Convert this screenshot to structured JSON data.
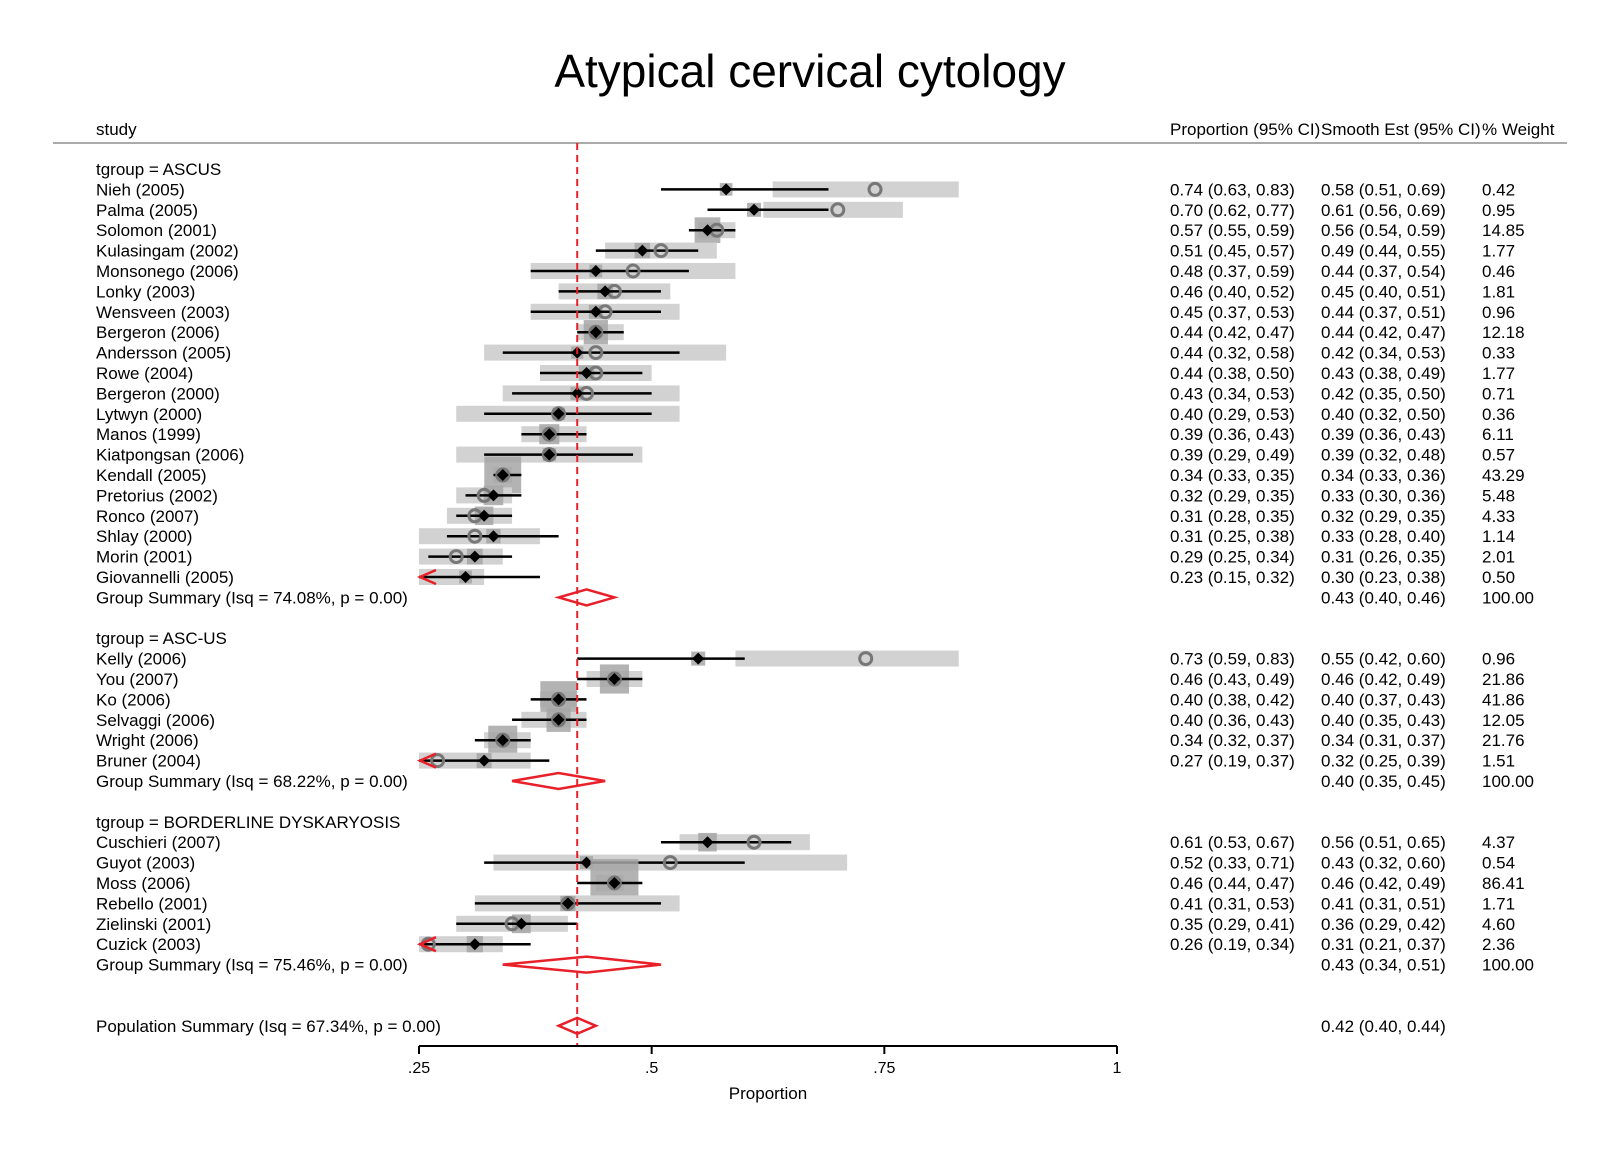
{
  "chart_data": {
    "type": "forest",
    "title": "Atypical cervical cytology",
    "xlabel": "Proportion",
    "xlim": [
      0.25,
      1
    ],
    "ticks": [
      {
        "value": 0.25,
        "label": ".25"
      },
      {
        "value": 0.5,
        "label": ".5"
      },
      {
        "value": 0.75,
        "label": ".75"
      },
      {
        "value": 1,
        "label": "1"
      }
    ],
    "reference_line": 0.42,
    "headers": {
      "study": "study",
      "proportion": "Proportion (95% CI)",
      "smooth": "Smooth Est (95% CI)",
      "weight": "% Weight"
    },
    "groups": [
      {
        "label": "tgroup = ASCUS",
        "studies": [
          {
            "name": "Nieh (2005)",
            "prop": 0.74,
            "prop_lo": 0.63,
            "prop_hi": 0.83,
            "est": 0.58,
            "est_lo": 0.51,
            "est_hi": 0.69,
            "prop_text": "0.74 (0.63, 0.83)",
            "est_text": "0.58 (0.51, 0.69)",
            "weight": "0.42"
          },
          {
            "name": "Palma (2005)",
            "prop": 0.7,
            "prop_lo": 0.62,
            "prop_hi": 0.77,
            "est": 0.61,
            "est_lo": 0.56,
            "est_hi": 0.69,
            "prop_text": "0.70 (0.62, 0.77)",
            "est_text": "0.61 (0.56, 0.69)",
            "weight": "0.95"
          },
          {
            "name": "Solomon (2001)",
            "prop": 0.57,
            "prop_lo": 0.55,
            "prop_hi": 0.59,
            "est": 0.56,
            "est_lo": 0.54,
            "est_hi": 0.59,
            "prop_text": "0.57 (0.55, 0.59)",
            "est_text": "0.56 (0.54, 0.59)",
            "weight": "14.85"
          },
          {
            "name": "Kulasingam (2002)",
            "prop": 0.51,
            "prop_lo": 0.45,
            "prop_hi": 0.57,
            "est": 0.49,
            "est_lo": 0.44,
            "est_hi": 0.55,
            "prop_text": "0.51 (0.45, 0.57)",
            "est_text": "0.49 (0.44, 0.55)",
            "weight": "1.77"
          },
          {
            "name": "Monsonego (2006)",
            "prop": 0.48,
            "prop_lo": 0.37,
            "prop_hi": 0.59,
            "est": 0.44,
            "est_lo": 0.37,
            "est_hi": 0.54,
            "prop_text": "0.48 (0.37, 0.59)",
            "est_text": "0.44 (0.37, 0.54)",
            "weight": "0.46"
          },
          {
            "name": "Lonky (2003)",
            "prop": 0.46,
            "prop_lo": 0.4,
            "prop_hi": 0.52,
            "est": 0.45,
            "est_lo": 0.4,
            "est_hi": 0.51,
            "prop_text": "0.46 (0.40, 0.52)",
            "est_text": "0.45 (0.40, 0.51)",
            "weight": "1.81"
          },
          {
            "name": "Wensveen (2003)",
            "prop": 0.45,
            "prop_lo": 0.37,
            "prop_hi": 0.53,
            "est": 0.44,
            "est_lo": 0.37,
            "est_hi": 0.51,
            "prop_text": "0.45 (0.37, 0.53)",
            "est_text": "0.44 (0.37, 0.51)",
            "weight": "0.96"
          },
          {
            "name": "Bergeron (2006)",
            "prop": 0.44,
            "prop_lo": 0.42,
            "prop_hi": 0.47,
            "est": 0.44,
            "est_lo": 0.42,
            "est_hi": 0.47,
            "prop_text": "0.44 (0.42, 0.47)",
            "est_text": "0.44 (0.42, 0.47)",
            "weight": "12.18"
          },
          {
            "name": "Andersson (2005)",
            "prop": 0.44,
            "prop_lo": 0.32,
            "prop_hi": 0.58,
            "est": 0.42,
            "est_lo": 0.34,
            "est_hi": 0.53,
            "prop_text": "0.44 (0.32, 0.58)",
            "est_text": "0.42 (0.34, 0.53)",
            "weight": "0.33"
          },
          {
            "name": "Rowe (2004)",
            "prop": 0.44,
            "prop_lo": 0.38,
            "prop_hi": 0.5,
            "est": 0.43,
            "est_lo": 0.38,
            "est_hi": 0.49,
            "prop_text": "0.44 (0.38, 0.50)",
            "est_text": "0.43 (0.38, 0.49)",
            "weight": "1.77"
          },
          {
            "name": "Bergeron (2000)",
            "prop": 0.43,
            "prop_lo": 0.34,
            "prop_hi": 0.53,
            "est": 0.42,
            "est_lo": 0.35,
            "est_hi": 0.5,
            "prop_text": "0.43 (0.34, 0.53)",
            "est_text": "0.42 (0.35, 0.50)",
            "weight": "0.71"
          },
          {
            "name": "Lytwyn (2000)",
            "prop": 0.4,
            "prop_lo": 0.29,
            "prop_hi": 0.53,
            "est": 0.4,
            "est_lo": 0.32,
            "est_hi": 0.5,
            "prop_text": "0.40 (0.29, 0.53)",
            "est_text": "0.40 (0.32, 0.50)",
            "weight": "0.36"
          },
          {
            "name": "Manos (1999)",
            "prop": 0.39,
            "prop_lo": 0.36,
            "prop_hi": 0.43,
            "est": 0.39,
            "est_lo": 0.36,
            "est_hi": 0.43,
            "prop_text": "0.39 (0.36, 0.43)",
            "est_text": "0.39 (0.36, 0.43)",
            "weight": "6.11"
          },
          {
            "name": "Kiatpongsan (2006)",
            "prop": 0.39,
            "prop_lo": 0.29,
            "prop_hi": 0.49,
            "est": 0.39,
            "est_lo": 0.32,
            "est_hi": 0.48,
            "prop_text": "0.39 (0.29, 0.49)",
            "est_text": "0.39 (0.32, 0.48)",
            "weight": "0.57"
          },
          {
            "name": "Kendall (2005)",
            "prop": 0.34,
            "prop_lo": 0.33,
            "prop_hi": 0.35,
            "est": 0.34,
            "est_lo": 0.33,
            "est_hi": 0.36,
            "prop_text": "0.34 (0.33, 0.35)",
            "est_text": "0.34 (0.33, 0.36)",
            "weight": "43.29"
          },
          {
            "name": "Pretorius (2002)",
            "prop": 0.32,
            "prop_lo": 0.29,
            "prop_hi": 0.35,
            "est": 0.33,
            "est_lo": 0.3,
            "est_hi": 0.36,
            "prop_text": "0.32 (0.29, 0.35)",
            "est_text": "0.33 (0.30, 0.36)",
            "weight": "5.48"
          },
          {
            "name": "Ronco (2007)",
            "prop": 0.31,
            "prop_lo": 0.28,
            "prop_hi": 0.35,
            "est": 0.32,
            "est_lo": 0.29,
            "est_hi": 0.35,
            "prop_text": "0.31 (0.28, 0.35)",
            "est_text": "0.32 (0.29, 0.35)",
            "weight": "4.33"
          },
          {
            "name": "Shlay (2000)",
            "prop": 0.31,
            "prop_lo": 0.25,
            "prop_hi": 0.38,
            "est": 0.33,
            "est_lo": 0.28,
            "est_hi": 0.4,
            "prop_text": "0.31 (0.25, 0.38)",
            "est_text": "0.33 (0.28, 0.40)",
            "weight": "1.14"
          },
          {
            "name": "Morin (2001)",
            "prop": 0.29,
            "prop_lo": 0.25,
            "prop_hi": 0.34,
            "est": 0.31,
            "est_lo": 0.26,
            "est_hi": 0.35,
            "prop_text": "0.29 (0.25, 0.34)",
            "est_text": "0.31 (0.26, 0.35)",
            "weight": "2.01"
          },
          {
            "name": "Giovannelli (2005)",
            "prop": 0.23,
            "prop_lo": 0.15,
            "prop_hi": 0.32,
            "est": 0.3,
            "est_lo": 0.23,
            "est_hi": 0.38,
            "prop_text": "0.23 (0.15, 0.32)",
            "est_text": "0.30 (0.23, 0.38)",
            "weight": "0.50"
          }
        ],
        "summary": {
          "label": "Group Summary (Isq = 74.08%, p = 0.00)",
          "est": 0.43,
          "lo": 0.4,
          "hi": 0.46,
          "est_text": "0.43 (0.40, 0.46)",
          "weight": "100.00"
        }
      },
      {
        "label": "tgroup = ASC-US",
        "studies": [
          {
            "name": "Kelly (2006)",
            "prop": 0.73,
            "prop_lo": 0.59,
            "prop_hi": 0.83,
            "est": 0.55,
            "est_lo": 0.42,
            "est_hi": 0.6,
            "prop_text": "0.73 (0.59, 0.83)",
            "est_text": "0.55 (0.42, 0.60)",
            "weight": "0.96"
          },
          {
            "name": "You (2007)",
            "prop": 0.46,
            "prop_lo": 0.43,
            "prop_hi": 0.49,
            "est": 0.46,
            "est_lo": 0.42,
            "est_hi": 0.49,
            "prop_text": "0.46 (0.43, 0.49)",
            "est_text": "0.46 (0.42, 0.49)",
            "weight": "21.86"
          },
          {
            "name": "Ko (2006)",
            "prop": 0.4,
            "prop_lo": 0.38,
            "prop_hi": 0.42,
            "est": 0.4,
            "est_lo": 0.37,
            "est_hi": 0.43,
            "prop_text": "0.40 (0.38, 0.42)",
            "est_text": "0.40 (0.37, 0.43)",
            "weight": "41.86"
          },
          {
            "name": "Selvaggi (2006)",
            "prop": 0.4,
            "prop_lo": 0.36,
            "prop_hi": 0.43,
            "est": 0.4,
            "est_lo": 0.35,
            "est_hi": 0.43,
            "prop_text": "0.40 (0.36, 0.43)",
            "est_text": "0.40 (0.35, 0.43)",
            "weight": "12.05"
          },
          {
            "name": "Wright (2006)",
            "prop": 0.34,
            "prop_lo": 0.32,
            "prop_hi": 0.37,
            "est": 0.34,
            "est_lo": 0.31,
            "est_hi": 0.37,
            "prop_text": "0.34 (0.32, 0.37)",
            "est_text": "0.34 (0.31, 0.37)",
            "weight": "21.76"
          },
          {
            "name": "Bruner (2004)",
            "prop": 0.27,
            "prop_lo": 0.19,
            "prop_hi": 0.37,
            "est": 0.32,
            "est_lo": 0.25,
            "est_hi": 0.39,
            "prop_text": "0.27 (0.19, 0.37)",
            "est_text": "0.32 (0.25, 0.39)",
            "weight": "1.51"
          }
        ],
        "summary": {
          "label": "Group Summary (Isq = 68.22%, p = 0.00)",
          "est": 0.4,
          "lo": 0.35,
          "hi": 0.45,
          "est_text": "0.40 (0.35, 0.45)",
          "weight": "100.00"
        }
      },
      {
        "label": "tgroup = BORDERLINE DYSKARYOSIS",
        "studies": [
          {
            "name": "Cuschieri (2007)",
            "prop": 0.61,
            "prop_lo": 0.53,
            "prop_hi": 0.67,
            "est": 0.56,
            "est_lo": 0.51,
            "est_hi": 0.65,
            "prop_text": "0.61 (0.53, 0.67)",
            "est_text": "0.56 (0.51, 0.65)",
            "weight": "4.37"
          },
          {
            "name": "Guyot (2003)",
            "prop": 0.52,
            "prop_lo": 0.33,
            "prop_hi": 0.71,
            "est": 0.43,
            "est_lo": 0.32,
            "est_hi": 0.6,
            "prop_text": "0.52 (0.33, 0.71)",
            "est_text": "0.43 (0.32, 0.60)",
            "weight": "0.54"
          },
          {
            "name": "Moss (2006)",
            "prop": 0.46,
            "prop_lo": 0.44,
            "prop_hi": 0.47,
            "est": 0.46,
            "est_lo": 0.42,
            "est_hi": 0.49,
            "prop_text": "0.46 (0.44, 0.47)",
            "est_text": "0.46 (0.42, 0.49)",
            "weight": "86.41"
          },
          {
            "name": "Rebello (2001)",
            "prop": 0.41,
            "prop_lo": 0.31,
            "prop_hi": 0.53,
            "est": 0.41,
            "est_lo": 0.31,
            "est_hi": 0.51,
            "prop_text": "0.41 (0.31, 0.53)",
            "est_text": "0.41 (0.31, 0.51)",
            "weight": "1.71"
          },
          {
            "name": "Zielinski (2001)",
            "prop": 0.35,
            "prop_lo": 0.29,
            "prop_hi": 0.41,
            "est": 0.36,
            "est_lo": 0.29,
            "est_hi": 0.42,
            "prop_text": "0.35 (0.29, 0.41)",
            "est_text": "0.36 (0.29, 0.42)",
            "weight": "4.60"
          },
          {
            "name": "Cuzick (2003)",
            "prop": 0.26,
            "prop_lo": 0.19,
            "prop_hi": 0.34,
            "est": 0.31,
            "est_lo": 0.21,
            "est_hi": 0.37,
            "prop_text": "0.26 (0.19, 0.34)",
            "est_text": "0.31 (0.21, 0.37)",
            "weight": "2.36"
          }
        ],
        "summary": {
          "label": "Group Summary (Isq = 75.46%, p = 0.00)",
          "est": 0.43,
          "lo": 0.34,
          "hi": 0.51,
          "est_text": "0.43 (0.34, 0.51)",
          "weight": "100.00"
        }
      }
    ],
    "overall": {
      "label": "Population Summary (Isq = 67.34%, p = 0.00)",
      "est": 0.42,
      "lo": 0.4,
      "hi": 0.44,
      "est_text": "0.42 (0.40, 0.44)"
    },
    "colors": {
      "reference_line": "#e8202a",
      "summary_diamond": "#e8202a",
      "truncation_arrow": "#e8202a",
      "estimate_marker": "#000000",
      "observed_marker": "#777777",
      "ci_band": "#d2d2d2",
      "weight_box": "#a6a6a6",
      "divider": "#aaaaaa"
    }
  }
}
